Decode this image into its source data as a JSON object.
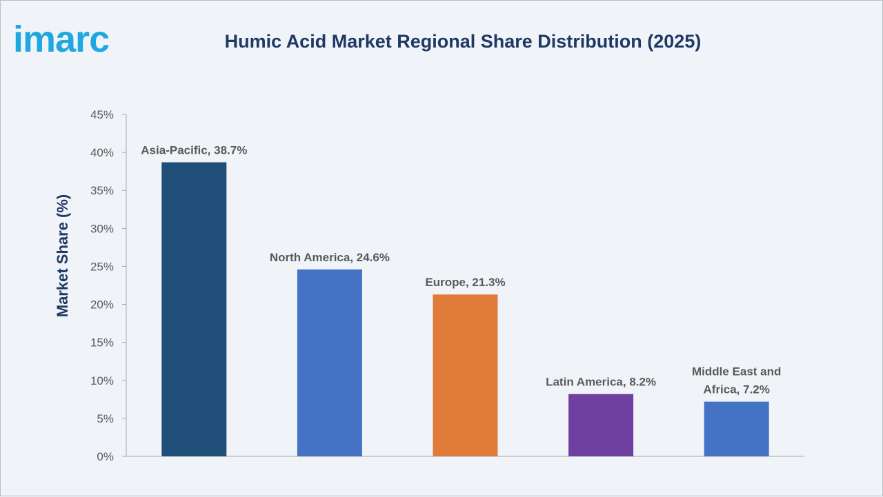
{
  "brand": {
    "name": "imarc",
    "color": "#1fa8e0"
  },
  "chart_data": {
    "type": "bar",
    "title": "Humic Acid Market Regional Share Distribution (2025)",
    "xlabel": "",
    "ylabel": "Market Share (%)",
    "ylim": [
      0,
      45
    ],
    "yticks": [
      0,
      5,
      10,
      15,
      20,
      25,
      30,
      35,
      40,
      45
    ],
    "ytick_suffix": "%",
    "grid": false,
    "legend": "none",
    "categories": [
      "Asia-Pacific",
      "North America",
      "Europe",
      "Latin America",
      "Middle East and Africa"
    ],
    "values": [
      38.7,
      24.6,
      21.3,
      8.2,
      7.2
    ],
    "data_labels": [
      [
        "Asia-Pacific, 38.7%"
      ],
      [
        "North America, 24.6%"
      ],
      [
        "Europe, 21.3%"
      ],
      [
        "Latin America, 8.2%"
      ],
      [
        "Middle East and",
        "Africa, 7.2%"
      ]
    ],
    "colors": [
      "#1f4e79",
      "#4472c4",
      "#e07b39",
      "#7040a0",
      "#4472c4"
    ]
  }
}
